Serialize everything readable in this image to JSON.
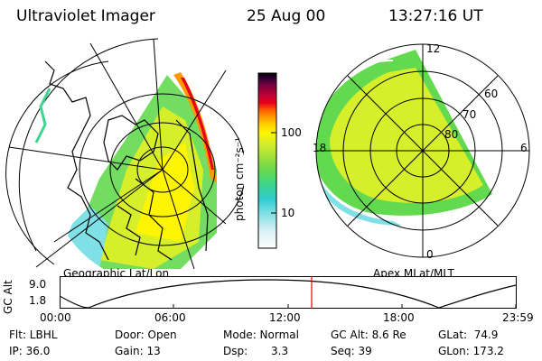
{
  "header": {
    "title": "Ultraviolet Imager",
    "date": "25 Aug 00",
    "time": "13:27:16 UT"
  },
  "left_map": {
    "label": "Geographic Lat/Lon"
  },
  "right_map": {
    "label": "Apex MLat/MLT",
    "mlt_labels": {
      "top": "12",
      "left": "18",
      "right": "6",
      "bottom": "0"
    },
    "lat_labels": [
      "60",
      "70",
      "80"
    ]
  },
  "colorbar": {
    "unit_label": "photon cm⁻²s⁻¹",
    "ticks": [
      "100",
      "10"
    ],
    "colors": [
      "#ffffff",
      "#d9f0f3",
      "#7fe0e6",
      "#2fcbd0",
      "#3dd58f",
      "#63d94f",
      "#9fe03a",
      "#d7ee2a",
      "#fff500",
      "#ffcc00",
      "#ff9900",
      "#ff5a00",
      "#e8001a",
      "#b8003a",
      "#7a0040",
      "#300035",
      "#000000"
    ]
  },
  "timeline": {
    "axis_label": "GC Alt",
    "y_ticks": [
      "9.0",
      "1.8"
    ],
    "x_ticks": [
      "00:00",
      "06:00",
      "12:00",
      "18:00",
      "23:59"
    ],
    "marker_color": "#e00000"
  },
  "info": {
    "flt": "Flt: LBHL",
    "ip": "IP: 36.0",
    "door": "Door: Open",
    "gain": "Gain: 13",
    "mode": "Mode: Normal",
    "dsp_label": "Dsp:",
    "dsp_value": "3.3",
    "gcalt": "GC Alt: 8.6 Re",
    "seq": "Seq: 39",
    "glat": "GLat:  74.9",
    "glon": "GLon: 173.2"
  }
}
